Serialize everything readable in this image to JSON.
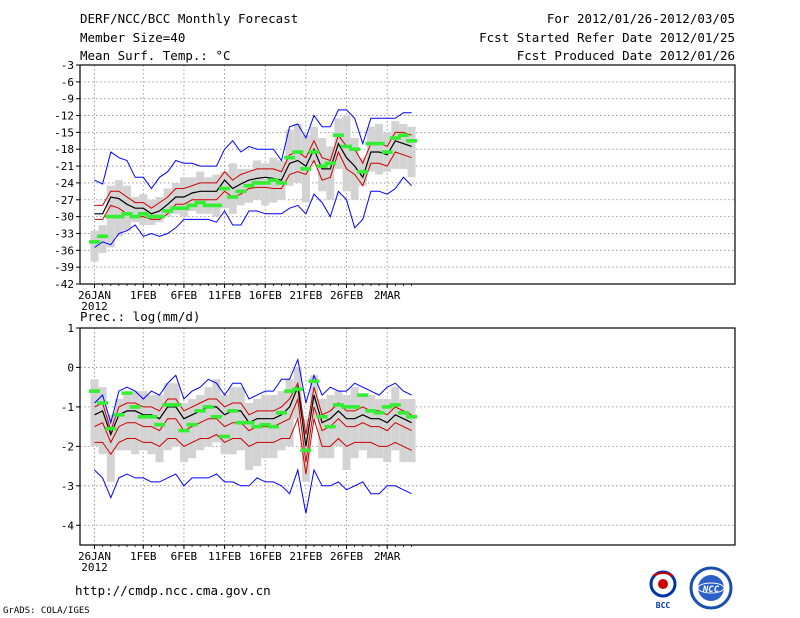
{
  "header": {
    "title": "DERF/NCC/BCC Monthly Forecast",
    "member_size": "Member Size=40",
    "variable": "Mean Surf. Temp.: °C",
    "period": "For 2012/01/26-2012/03/05",
    "start_date": "Fcst Started Refer Date 2012/01/25",
    "produced_date": "Fcst Produced Date 2012/01/26"
  },
  "footer": {
    "url": "http://cmdp.ncc.cma.gov.cn",
    "grads": "GrADS: COLA/IGES"
  },
  "logos": {
    "bcc": "BCC",
    "ncc": "NCC"
  },
  "colors": {
    "max_min": "#0000ff",
    "spread": "#cc0000",
    "mean": "#000000",
    "box": "#d3d3d3",
    "observed": "#33ee33"
  },
  "chart_data": [
    {
      "type": "box",
      "title": "Mean Surf. Temp.: °C",
      "xlabel": "",
      "ylabel": "Mean Surf. Temp. (°C)",
      "x": [
        "01-26",
        "01-27",
        "01-28",
        "01-29",
        "01-30",
        "01-31",
        "02-01",
        "02-02",
        "02-03",
        "02-04",
        "02-05",
        "02-06",
        "02-07",
        "02-08",
        "02-09",
        "02-10",
        "02-11",
        "02-12",
        "02-13",
        "02-14",
        "02-15",
        "02-16",
        "02-17",
        "02-18",
        "02-19",
        "02-20",
        "02-21",
        "02-22",
        "02-23",
        "02-24",
        "02-25",
        "02-26",
        "02-27",
        "02-28",
        "02-29",
        "03-01",
        "03-02",
        "03-03",
        "03-04",
        "03-05"
      ],
      "xticks": [
        {
          "label": "26JAN",
          "sub": "2012",
          "index": 0
        },
        {
          "label": "1FEB",
          "index": 6
        },
        {
          "label": "6FEB",
          "index": 11
        },
        {
          "label": "11FEB",
          "index": 16
        },
        {
          "label": "16FEB",
          "index": 21
        },
        {
          "label": "21FEB",
          "index": 26
        },
        {
          "label": "26FEB",
          "index": 31
        },
        {
          "label": "2MAR",
          "index": 36
        }
      ],
      "yticks": [
        -3,
        -6,
        -9,
        -12,
        -15,
        -18,
        -21,
        -24,
        -27,
        -30,
        -33,
        -36,
        -39,
        -42
      ],
      "ylim": [
        -42,
        -3
      ],
      "series": [
        {
          "name": "max",
          "values": [
            -23.5,
            -24.2,
            -18.5,
            -19.5,
            -20.0,
            -23.0,
            -23.0,
            -25.0,
            -23.0,
            -22.0,
            -20.0,
            -20.5,
            -20.5,
            -21.0,
            -21.0,
            -21.0,
            -18.0,
            -16.5,
            -18.5,
            -17.5,
            -18.0,
            -18.0,
            -18.0,
            -20.0,
            -14.0,
            -13.5,
            -16.0,
            -12.0,
            -14.0,
            -14.0,
            -11.0,
            -11.0,
            -12.5,
            -17.0,
            -12.5,
            -12.5,
            -12.5,
            -12.5,
            -11.5,
            -11.5
          ]
        },
        {
          "name": "upper",
          "values": [
            -28.0,
            -28.0,
            -25.5,
            -25.5,
            -26.5,
            -27.5,
            -27.5,
            -28.5,
            -27.5,
            -26.5,
            -25.0,
            -25.0,
            -24.5,
            -24.0,
            -24.0,
            -24.0,
            -22.0,
            -23.5,
            -22.5,
            -22.0,
            -21.5,
            -21.5,
            -21.5,
            -22.0,
            -19.0,
            -18.5,
            -19.5,
            -16.5,
            -19.5,
            -20.0,
            -15.5,
            -17.5,
            -18.0,
            -20.5,
            -17.0,
            -17.0,
            -17.5,
            -15.0,
            -15.0,
            -15.5
          ]
        },
        {
          "name": "mean",
          "values": [
            -29.5,
            -29.5,
            -26.5,
            -26.8,
            -27.8,
            -28.5,
            -28.5,
            -29.5,
            -29.0,
            -27.8,
            -26.5,
            -26.5,
            -25.8,
            -25.5,
            -25.5,
            -25.5,
            -23.5,
            -25.0,
            -24.2,
            -23.5,
            -23.2,
            -23.0,
            -23.2,
            -23.5,
            -20.5,
            -20.0,
            -21.0,
            -18.0,
            -21.5,
            -21.5,
            -17.0,
            -19.5,
            -21.0,
            -23.0,
            -18.5,
            -18.5,
            -19.0,
            -16.5,
            -17.0,
            -17.5
          ]
        },
        {
          "name": "lower",
          "values": [
            -30.5,
            -30.5,
            -28.0,
            -28.5,
            -29.5,
            -30.0,
            -30.0,
            -30.5,
            -30.5,
            -29.5,
            -27.8,
            -27.8,
            -27.0,
            -27.0,
            -27.0,
            -27.0,
            -25.5,
            -26.5,
            -26.0,
            -25.0,
            -24.8,
            -24.8,
            -25.0,
            -25.0,
            -22.5,
            -22.0,
            -22.5,
            -20.0,
            -23.5,
            -23.0,
            -18.5,
            -21.5,
            -22.5,
            -24.5,
            -20.5,
            -20.5,
            -21.0,
            -18.5,
            -19.0,
            -19.5
          ]
        },
        {
          "name": "min",
          "values": [
            -35.5,
            -34.5,
            -35.0,
            -33.0,
            -32.5,
            -31.5,
            -33.5,
            -33.0,
            -33.5,
            -33.0,
            -32.0,
            -30.5,
            -30.5,
            -30.5,
            -30.5,
            -31.0,
            -29.0,
            -31.5,
            -31.5,
            -29.0,
            -29.0,
            -29.5,
            -29.5,
            -29.5,
            -28.5,
            -28.0,
            -29.5,
            -26.0,
            -27.5,
            -30.0,
            -25.5,
            -27.0,
            -32.0,
            -30.5,
            -25.5,
            -25.5,
            -26.0,
            -25.0,
            -23.0,
            -24.5
          ]
        },
        {
          "name": "box_high",
          "values": [
            -32.5,
            -31.5,
            -24.5,
            -23.5,
            -24.5,
            -26.5,
            -26.0,
            -27.0,
            -26.5,
            -25.0,
            -24.0,
            -23.0,
            -23.0,
            -22.0,
            -23.0,
            -22.5,
            -22.0,
            -20.5,
            -21.5,
            -21.5,
            -20.0,
            -20.5,
            -19.5,
            -20.0,
            -14.5,
            -13.5,
            -15.5,
            -14.0,
            -16.0,
            -17.5,
            -12.5,
            -12.0,
            -16.0,
            -19.5,
            -14.0,
            -13.5,
            -15.0,
            -13.0,
            -13.5,
            -14.0
          ]
        },
        {
          "name": "box_low",
          "values": [
            -38.0,
            -36.5,
            -35.5,
            -33.5,
            -32.5,
            -31.0,
            -31.5,
            -31.5,
            -31.0,
            -30.0,
            -29.5,
            -30.0,
            -29.0,
            -29.5,
            -29.5,
            -30.0,
            -28.5,
            -29.5,
            -28.0,
            -27.5,
            -27.0,
            -28.0,
            -27.5,
            -27.0,
            -24.5,
            -24.0,
            -27.5,
            -20.5,
            -25.5,
            -27.0,
            -21.5,
            -25.5,
            -27.0,
            -24.5,
            -22.0,
            -22.5,
            -22.0,
            -21.5,
            -21.5,
            -23.0
          ]
        },
        {
          "name": "observed",
          "values": [
            -34.5,
            -33.5,
            -30.0,
            -30.0,
            -29.5,
            -30.0,
            -29.5,
            -30.0,
            -30.0,
            -29.0,
            -28.5,
            -28.5,
            -28.0,
            -27.5,
            -28.0,
            -28.0,
            -25.0,
            -26.5,
            -25.5,
            -24.5,
            -24.0,
            -24.0,
            -23.5,
            -24.0,
            -19.5,
            -18.5,
            -21.5,
            -18.5,
            -21.0,
            -20.5,
            -15.5,
            -17.5,
            -18.0,
            -22.0,
            -17.0,
            -17.0,
            -18.5,
            -16.0,
            -15.5,
            -16.5
          ]
        }
      ]
    },
    {
      "type": "box",
      "title": "Prec.: log(mm/d)",
      "xlabel": "",
      "ylabel": "Prec. log(mm/d)",
      "x": [
        "01-26",
        "01-27",
        "01-28",
        "01-29",
        "01-30",
        "01-31",
        "02-01",
        "02-02",
        "02-03",
        "02-04",
        "02-05",
        "02-06",
        "02-07",
        "02-08",
        "02-09",
        "02-10",
        "02-11",
        "02-12",
        "02-13",
        "02-14",
        "02-15",
        "02-16",
        "02-17",
        "02-18",
        "02-19",
        "02-20",
        "02-21",
        "02-22",
        "02-23",
        "02-24",
        "02-25",
        "02-26",
        "02-27",
        "02-28",
        "02-29",
        "03-01",
        "03-02",
        "03-03",
        "03-04",
        "03-05"
      ],
      "xticks": [
        {
          "label": "26JAN",
          "sub": "2012",
          "index": 0
        },
        {
          "label": "1FEB",
          "index": 6
        },
        {
          "label": "6FEB",
          "index": 11
        },
        {
          "label": "11FEB",
          "index": 16
        },
        {
          "label": "16FEB",
          "index": 21
        },
        {
          "label": "21FEB",
          "index": 26
        },
        {
          "label": "26FEB",
          "index": 31
        },
        {
          "label": "2MAR",
          "index": 36
        }
      ],
      "yticks": [
        1,
        0,
        -1,
        -2,
        -3,
        -4
      ],
      "ylim": [
        -4.5,
        1
      ],
      "series": [
        {
          "name": "max",
          "values": [
            -0.9,
            -0.7,
            -1.4,
            -0.6,
            -0.5,
            -0.6,
            -0.8,
            -0.6,
            -0.7,
            -0.4,
            -0.2,
            -0.8,
            -0.6,
            -0.5,
            -0.3,
            -0.4,
            -0.7,
            -0.4,
            -0.4,
            -0.8,
            -0.7,
            -0.6,
            -0.6,
            -0.3,
            -0.3,
            0.2,
            -0.9,
            -0.2,
            -0.7,
            -0.5,
            -0.6,
            -0.6,
            -0.4,
            -0.5,
            -0.6,
            -0.7,
            -0.5,
            -0.4,
            -0.6,
            -0.7
          ]
        },
        {
          "name": "upper",
          "values": [
            -1.0,
            -0.9,
            -1.6,
            -1.0,
            -0.9,
            -0.9,
            -1.0,
            -1.0,
            -1.1,
            -0.8,
            -0.8,
            -1.1,
            -1.0,
            -0.9,
            -0.8,
            -0.8,
            -1.0,
            -0.9,
            -0.9,
            -1.2,
            -1.1,
            -1.1,
            -1.1,
            -1.0,
            -0.8,
            -0.4,
            -1.7,
            -0.5,
            -1.2,
            -1.1,
            -0.9,
            -1.1,
            -1.1,
            -1.0,
            -1.1,
            -1.1,
            -1.2,
            -1.0,
            -1.1,
            -1.2
          ]
        },
        {
          "name": "mean",
          "values": [
            -1.2,
            -1.1,
            -1.7,
            -1.2,
            -1.1,
            -1.1,
            -1.2,
            -1.2,
            -1.3,
            -1.0,
            -1.0,
            -1.3,
            -1.2,
            -1.1,
            -1.0,
            -1.0,
            -1.2,
            -1.1,
            -1.1,
            -1.4,
            -1.3,
            -1.3,
            -1.3,
            -1.2,
            -1.0,
            -0.5,
            -2.0,
            -0.7,
            -1.4,
            -1.3,
            -1.1,
            -1.3,
            -1.3,
            -1.2,
            -1.3,
            -1.3,
            -1.4,
            -1.2,
            -1.3,
            -1.4
          ]
        },
        {
          "name": "lower",
          "values": [
            -1.5,
            -1.4,
            -1.9,
            -1.5,
            -1.4,
            -1.4,
            -1.5,
            -1.5,
            -1.6,
            -1.3,
            -1.3,
            -1.6,
            -1.5,
            -1.4,
            -1.3,
            -1.3,
            -1.5,
            -1.4,
            -1.4,
            -1.6,
            -1.5,
            -1.5,
            -1.5,
            -1.4,
            -1.3,
            -0.8,
            -2.4,
            -1.0,
            -1.6,
            -1.5,
            -1.3,
            -1.5,
            -1.5,
            -1.4,
            -1.5,
            -1.5,
            -1.6,
            -1.4,
            -1.5,
            -1.6
          ]
        },
        {
          "name": "spread_low",
          "values": [
            -1.9,
            -1.9,
            -2.2,
            -1.9,
            -1.8,
            -1.8,
            -1.9,
            -1.9,
            -2.0,
            -1.8,
            -1.8,
            -2.0,
            -1.9,
            -1.8,
            -1.8,
            -1.7,
            -1.9,
            -1.8,
            -1.8,
            -2.0,
            -1.9,
            -1.9,
            -1.9,
            -1.8,
            -1.8,
            -1.3,
            -2.7,
            -1.3,
            -2.0,
            -2.0,
            -1.8,
            -2.0,
            -1.9,
            -1.9,
            -1.9,
            -2.0,
            -2.0,
            -1.9,
            -2.0,
            -2.1
          ]
        },
        {
          "name": "min",
          "values": [
            -2.6,
            -2.8,
            -3.3,
            -2.8,
            -2.7,
            -2.8,
            -2.8,
            -2.9,
            -2.9,
            -2.8,
            -2.7,
            -3.0,
            -2.8,
            -2.8,
            -2.8,
            -2.7,
            -2.9,
            -2.9,
            -3.0,
            -3.0,
            -2.8,
            -2.9,
            -2.9,
            -3.0,
            -3.2,
            -2.6,
            -3.7,
            -2.6,
            -3.0,
            -3.0,
            -2.9,
            -3.1,
            -3.0,
            -2.9,
            -3.2,
            -3.2,
            -3.0,
            -3.0,
            -3.1,
            -3.2
          ]
        },
        {
          "name": "box_high",
          "values": [
            -0.3,
            -0.5,
            -1.2,
            -0.8,
            -0.7,
            -0.6,
            -0.6,
            -0.7,
            -0.7,
            -0.4,
            -0.4,
            -0.9,
            -0.8,
            -0.7,
            -0.5,
            -0.3,
            -0.7,
            -0.5,
            -0.5,
            -0.9,
            -0.8,
            -0.7,
            -0.7,
            -0.6,
            -0.3,
            0.0,
            -1.3,
            -0.2,
            -0.8,
            -0.7,
            -0.6,
            -0.7,
            -0.5,
            -0.7,
            -0.7,
            -0.8,
            -0.8,
            -0.5,
            -0.8,
            -0.8
          ]
        },
        {
          "name": "box_low",
          "values": [
            -2.0,
            -2.2,
            -2.9,
            -2.1,
            -2.1,
            -2.2,
            -2.1,
            -2.2,
            -2.4,
            -2.1,
            -2.0,
            -2.4,
            -2.3,
            -2.1,
            -2.0,
            -1.9,
            -2.2,
            -2.2,
            -2.1,
            -2.6,
            -2.5,
            -2.3,
            -2.3,
            -2.1,
            -2.0,
            -1.3,
            -2.9,
            -1.3,
            -2.3,
            -2.3,
            -2.0,
            -2.6,
            -2.3,
            -2.1,
            -2.3,
            -2.3,
            -2.4,
            -2.1,
            -2.4,
            -2.4
          ]
        },
        {
          "name": "observed",
          "values": [
            -0.6,
            -0.9,
            -1.55,
            -1.2,
            -0.65,
            -1.0,
            -1.25,
            -1.25,
            -1.45,
            -0.95,
            -0.95,
            -1.6,
            -1.45,
            -1.1,
            -1.0,
            -1.25,
            -1.75,
            -1.1,
            -1.4,
            -1.4,
            -1.5,
            -1.45,
            -1.5,
            -1.15,
            -0.6,
            -0.55,
            -2.1,
            -0.35,
            -1.25,
            -1.5,
            -0.95,
            -1.0,
            -1.0,
            -0.7,
            -1.1,
            -1.15,
            -1.0,
            -0.95,
            -1.15,
            -1.25
          ]
        }
      ]
    }
  ]
}
